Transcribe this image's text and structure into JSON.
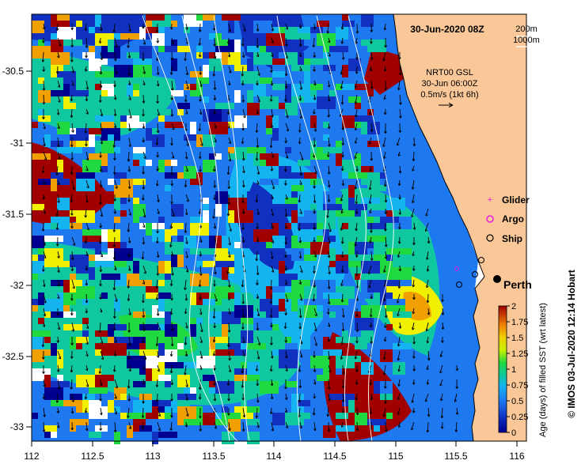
{
  "map": {
    "title": "30-Jun-2020 08Z",
    "depth_labels": [
      "200m",
      "1000m"
    ],
    "current_source": {
      "line1": "NRT00 GSL",
      "line2": "30-Jun 06:00Z",
      "line3": "0.5m/s (1kt 6h)"
    },
    "legend": {
      "glider": "Glider",
      "argo": "Argo",
      "ship": "Ship"
    },
    "city": "Perth",
    "colorbar": {
      "label": "Age (days) of filled SST (wrt latest)",
      "ticks": [
        "2",
        "1.75",
        "1.5",
        "1.25",
        "1",
        "0.75",
        "0.5",
        "0.25",
        "0"
      ]
    },
    "credit": "© IMOS 03-Jul-2020 12:14 Hobart",
    "x_ticks": [
      "112",
      "112.5",
      "113",
      "113.5",
      "114",
      "114.5",
      "115",
      "115.5",
      "116"
    ],
    "y_ticks": [
      "-30.5",
      "-31",
      "-31.5",
      "-32",
      "-32.5",
      "-33"
    ],
    "colors": {
      "land": "#fac898",
      "deep_blue": "#1030c0",
      "mid_blue": "#1e78f0",
      "light_blue": "#14b4f0",
      "teal": "#10c8a0",
      "green": "#20d840",
      "yellow": "#f0f000",
      "orange": "#f0a000",
      "dark_red": "#a00000",
      "navy": "#000090"
    }
  }
}
